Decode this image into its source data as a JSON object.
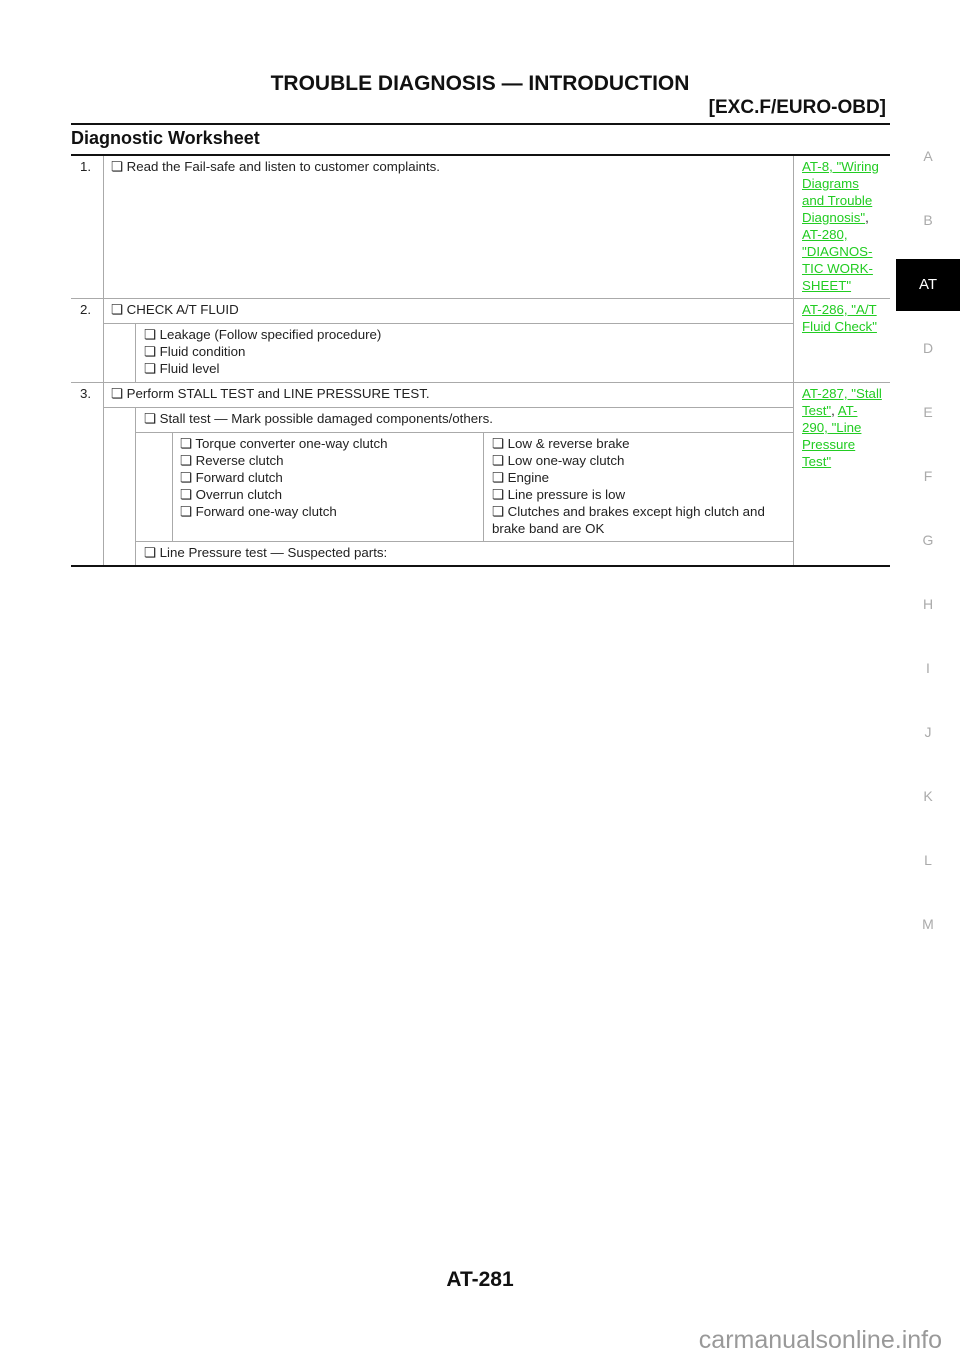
{
  "header": {
    "title": "TROUBLE DIAGNOSIS — INTRODUCTION",
    "subtitle": "[EXC.F/EURO-OBD]"
  },
  "section_title": "Diagnostic Worksheet",
  "rows": [
    {
      "num": "1.",
      "main": "❏ Read the Fail-safe and listen to customer complaints.",
      "links": [
        "AT-8, \"Wiring ",
        "Diagrams ",
        "and Trouble ",
        "Diagnosis\"",
        ", ",
        "AT-280, ",
        "\"DIAGNOS-",
        "TIC WORK-",
        "SHEET\""
      ]
    },
    {
      "num": "2.",
      "main": "❏ CHECK A/T FLUID",
      "sub": [
        "❏ Leakage (Follow specified procedure)",
        "❏ Fluid condition",
        "❏ Fluid level"
      ],
      "links": [
        "AT-286, \"A/T ",
        "Fluid Check\""
      ]
    },
    {
      "num": "3.",
      "main": "❏ Perform STALL TEST and LINE PRESSURE TEST.",
      "stall": "❏ Stall test — Mark possible damaged components/others.",
      "left": [
        "❏ Torque converter one-way clutch",
        "❏ Reverse clutch",
        "❏ Forward clutch",
        "❏ Overrun clutch",
        "❏ Forward one-way clutch"
      ],
      "right": [
        "❏ Low & reverse brake",
        "❏ Low one-way clutch",
        "❏ Engine",
        "❏ Line pressure is low",
        "❏ Clutches and brakes except high clutch and",
        "brake band are OK"
      ],
      "line": "❏ Line Pressure test — Suspected parts:",
      "links": [
        "AT-287, \"Stall ",
        "Test\"",
        ", ",
        "AT-",
        "290, \"Line ",
        "Pressure ",
        "Test\""
      ]
    }
  ],
  "side_tabs": [
    "A",
    "B",
    "AT",
    "D",
    "E",
    "F",
    "G",
    "H",
    "I",
    "J",
    "K",
    "L",
    "M"
  ],
  "active_tab": "AT",
  "page_number": "AT-281",
  "watermark": "carmanualsonline.info",
  "colors": {
    "link": "#22cc22",
    "active_tab_bg": "#000000"
  }
}
